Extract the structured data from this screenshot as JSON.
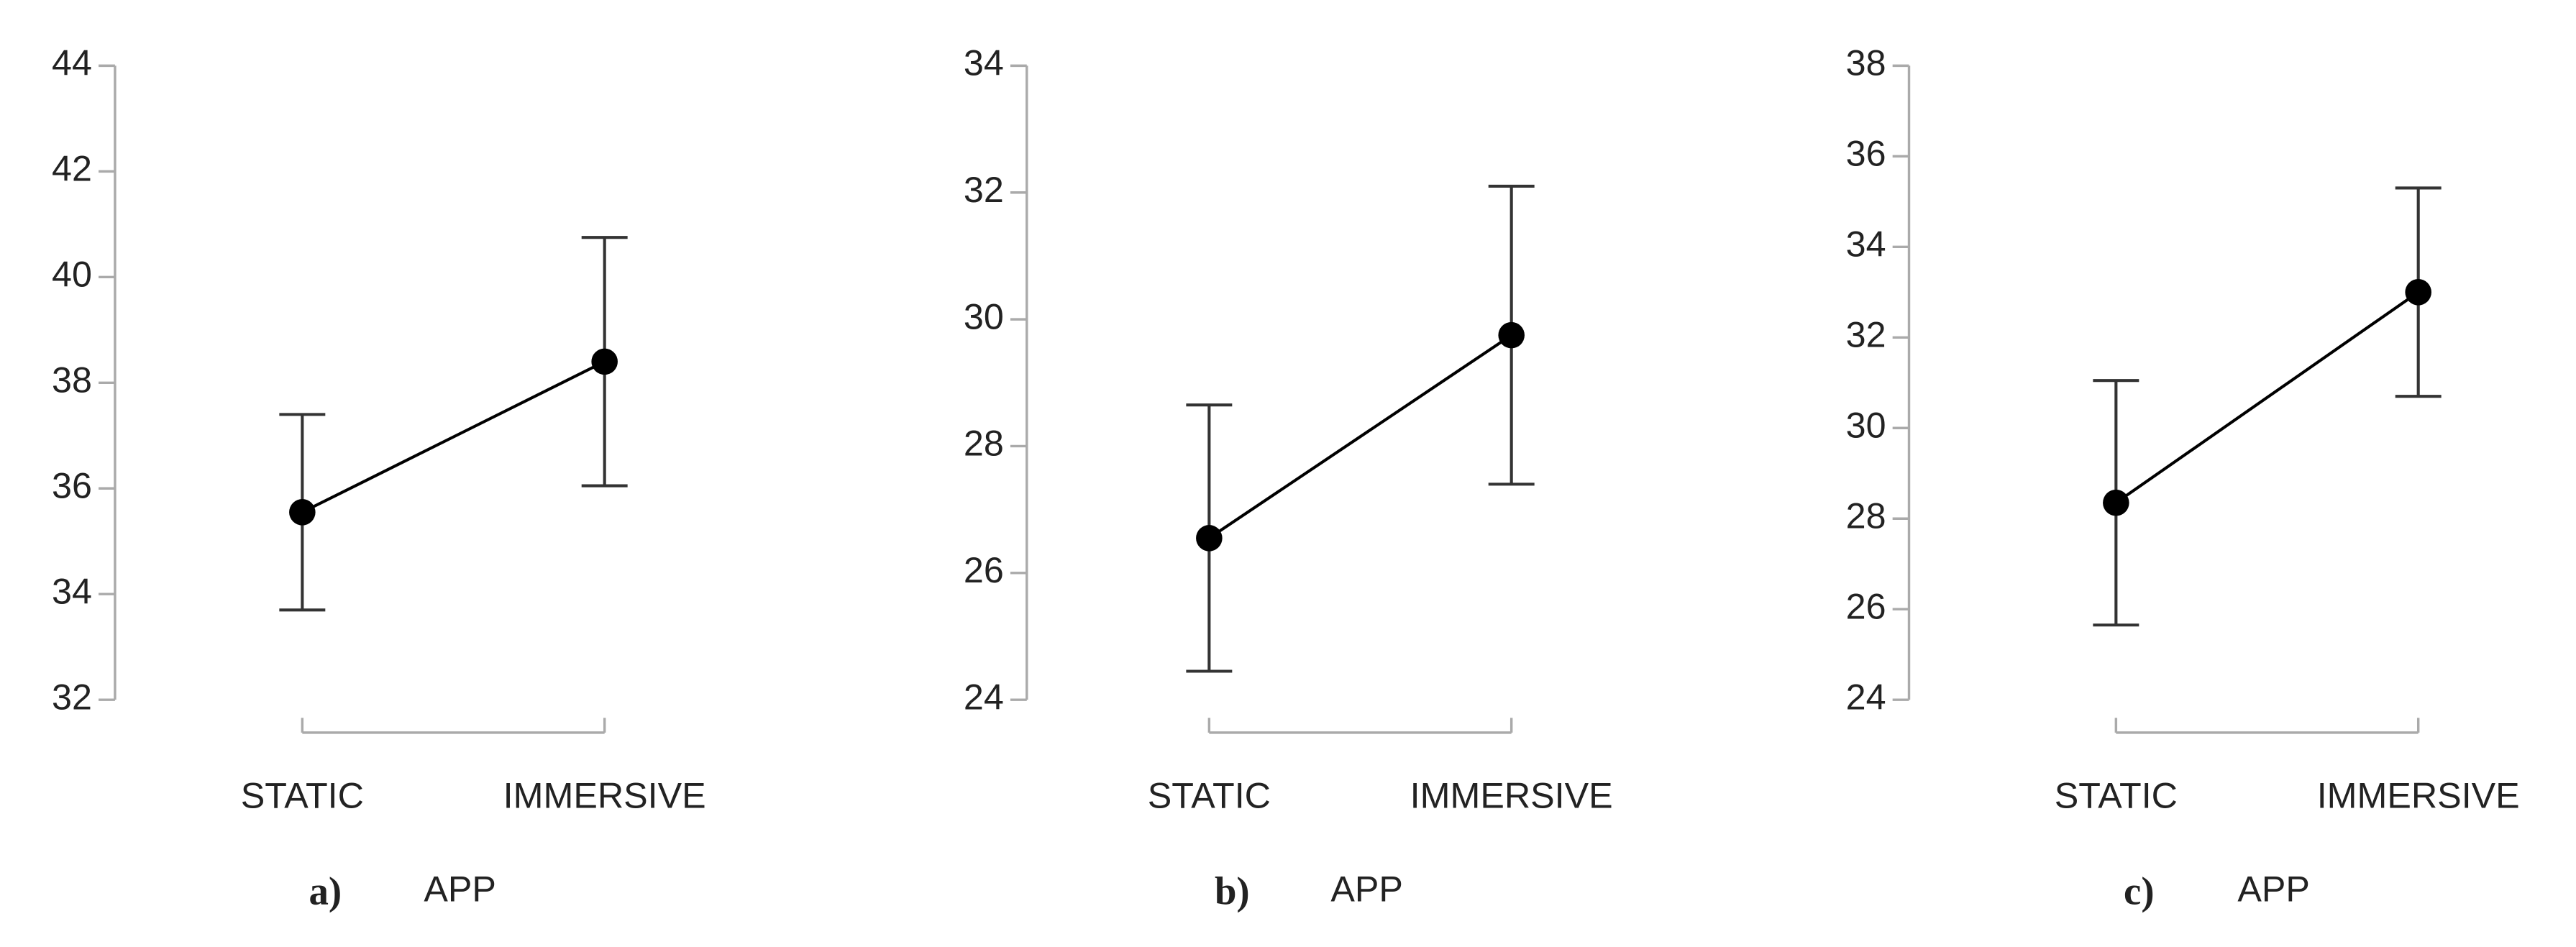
{
  "chart_data": [
    {
      "type": "line",
      "panel": "a)",
      "xlabel": "APP",
      "categories": [
        "STATIC",
        "IMMERSIVE"
      ],
      "values": [
        35.55,
        38.4
      ],
      "errors": [
        1.85,
        2.35
      ],
      "color": "#000000",
      "ylim": [
        32,
        44
      ],
      "yticks": [
        32,
        34,
        36,
        38,
        40,
        42,
        44
      ]
    },
    {
      "type": "line",
      "panel": "b)",
      "xlabel": "APP",
      "categories": [
        "STATIC",
        "IMMERSIVE"
      ],
      "values": [
        26.55,
        29.75
      ],
      "errors": [
        2.1,
        2.35
      ],
      "color": "#000000",
      "ylim": [
        24,
        34
      ],
      "yticks": [
        24,
        26,
        28,
        30,
        32,
        34
      ]
    },
    {
      "type": "line",
      "panel": "c)",
      "xlabel": "APP",
      "categories": [
        "STATIC",
        "IMMERSIVE"
      ],
      "values": [
        28.35,
        33.0
      ],
      "errors": [
        2.7,
        2.3
      ],
      "color": "#000000",
      "ylim": [
        24,
        38
      ],
      "yticks": [
        24,
        26,
        28,
        30,
        32,
        34,
        36,
        38
      ]
    }
  ]
}
